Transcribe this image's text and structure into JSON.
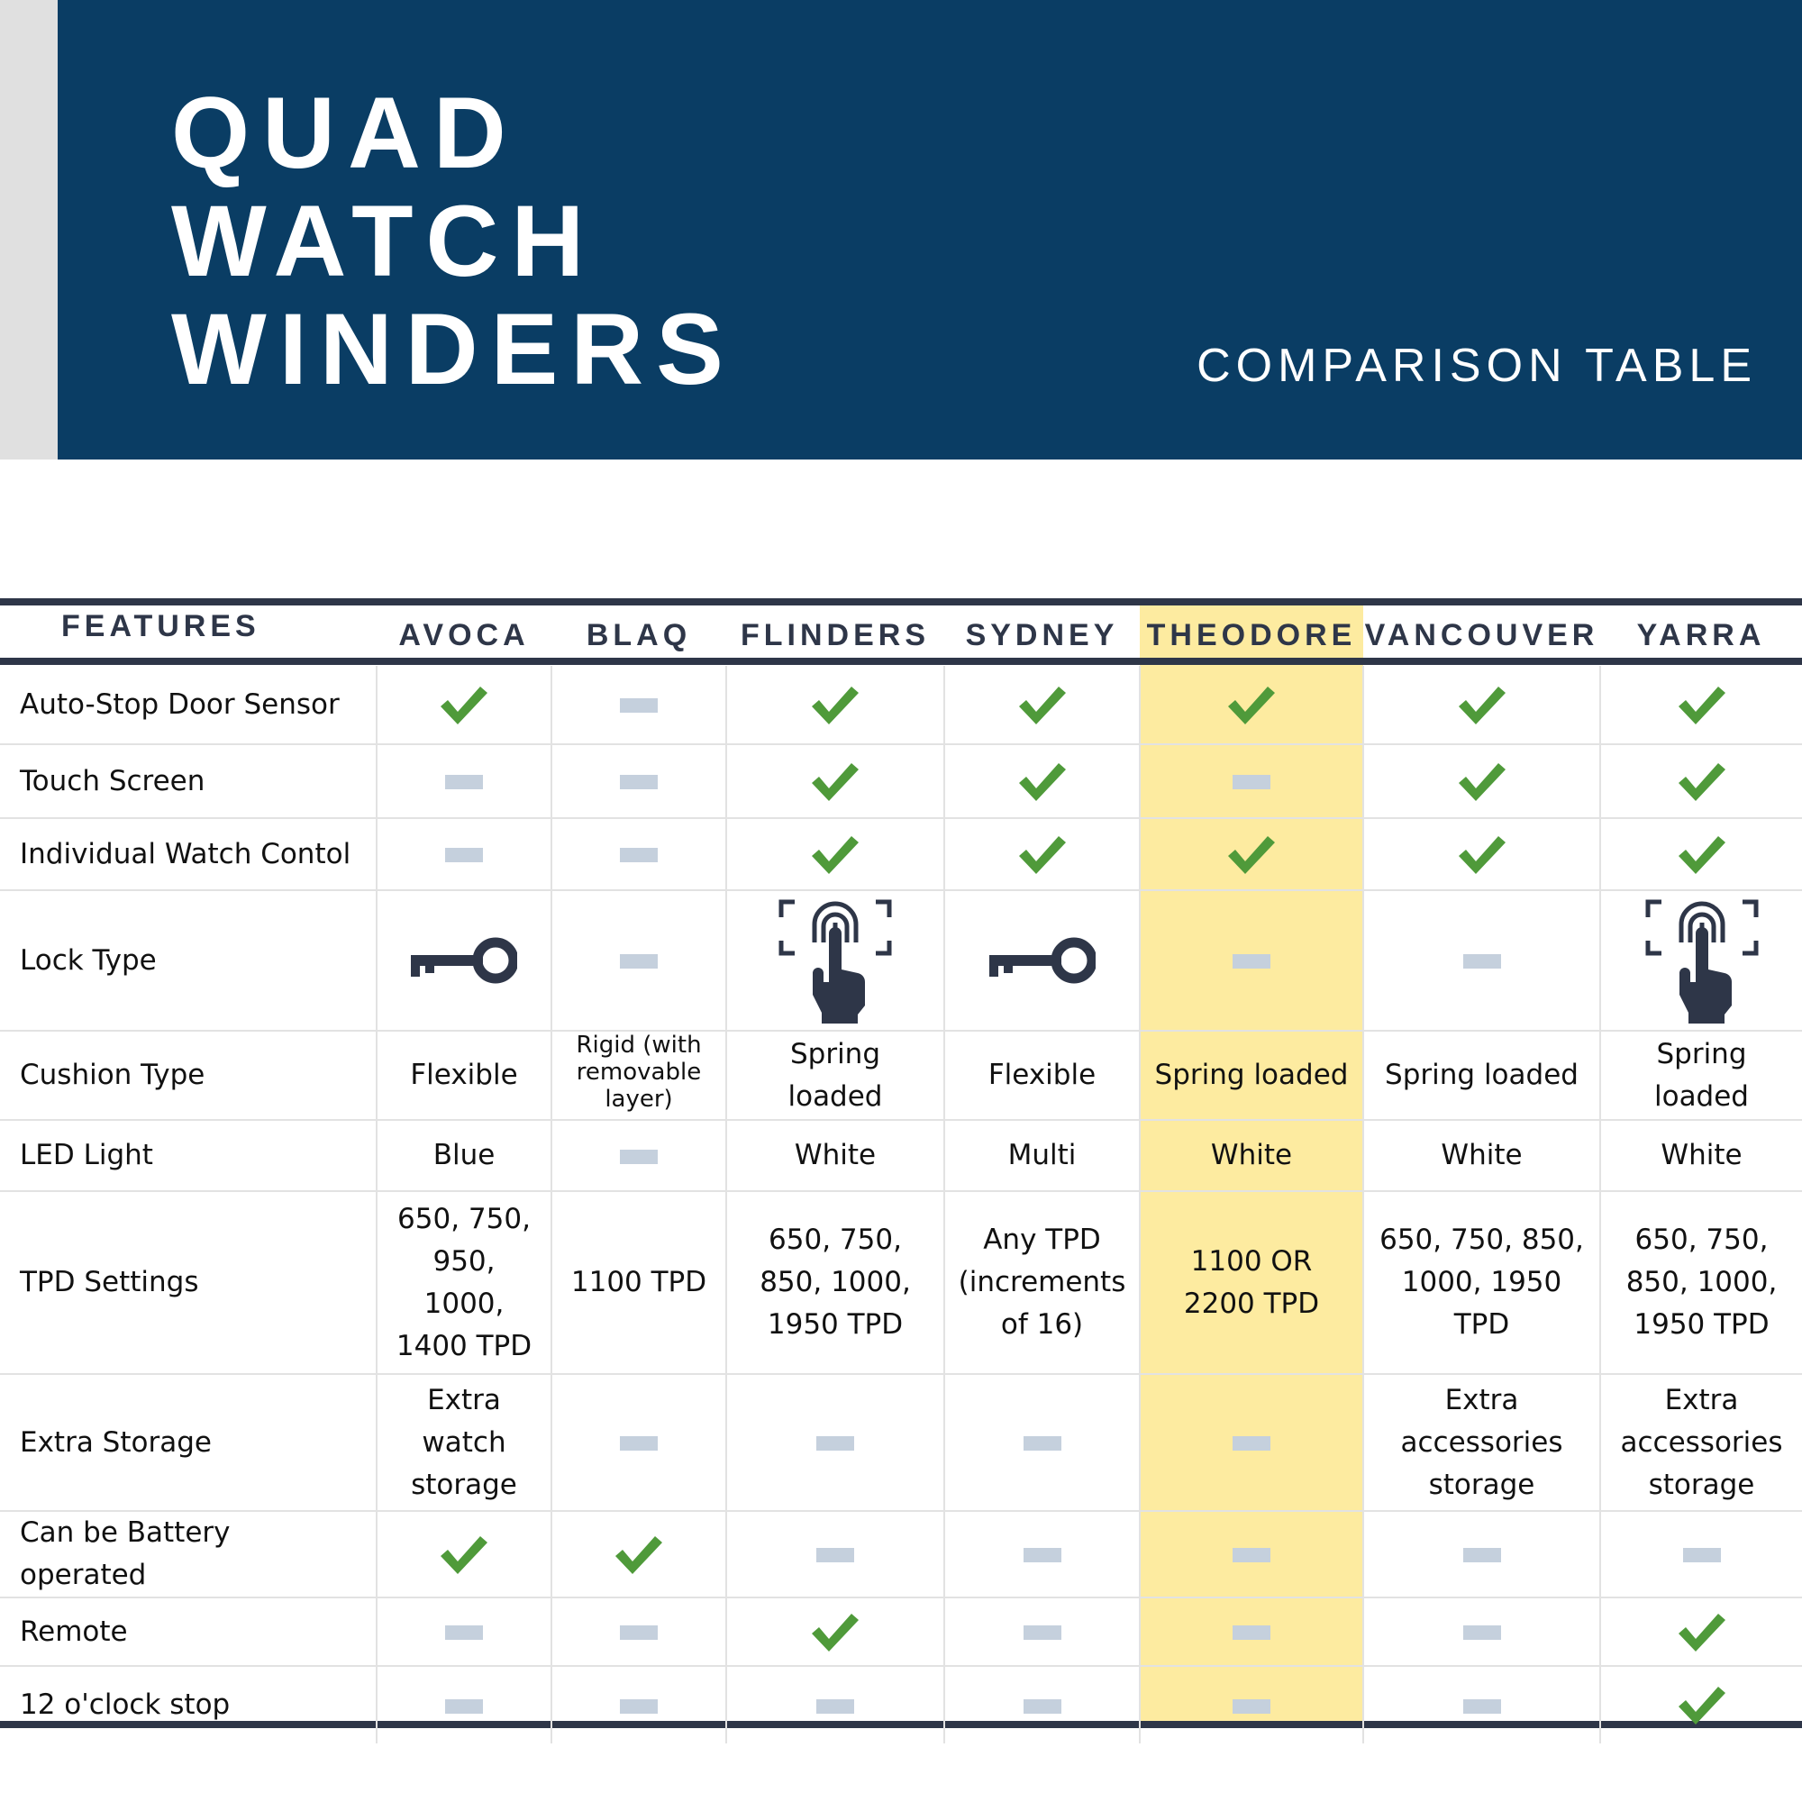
{
  "header": {
    "title_lines": [
      "QUAD",
      "WATCH",
      "WINDERS"
    ],
    "subtitle": "COMPARISON TABLE",
    "background_color": "#0a3d64"
  },
  "table": {
    "features_label": "FEATURES",
    "highlight_column": "THEODORE",
    "highlight_color": "#fdeba0",
    "check_color": "#4f9a3a",
    "dash_color": "#c5d0dd",
    "columns": [
      "AVOCA",
      "BLAQ",
      "FLINDERS",
      "SYDNEY",
      "THEODORE",
      "VANCOUVER",
      "YARRA"
    ],
    "rows": [
      {
        "feature": "Auto-Stop Door Sensor",
        "values": [
          "check-icon",
          "dash-icon",
          "check-icon",
          "check-icon",
          "check-icon",
          "check-icon",
          "check-icon"
        ]
      },
      {
        "feature": "Touch Screen",
        "values": [
          "dash-icon",
          "dash-icon",
          "check-icon",
          "check-icon",
          "dash-icon",
          "check-icon",
          "check-icon"
        ]
      },
      {
        "feature": "Individual Watch Contol",
        "values": [
          "dash-icon",
          "dash-icon",
          "check-icon",
          "check-icon",
          "check-icon",
          "check-icon",
          "check-icon"
        ]
      },
      {
        "feature": "Lock Type",
        "values": [
          "key-icon",
          "dash-icon",
          "fingerprint-touch-icon",
          "key-icon",
          "dash-icon",
          "dash-icon",
          "fingerprint-touch-icon"
        ]
      },
      {
        "feature": "Cushion Type",
        "values": [
          "Flexible",
          "Rigid (with removable layer)",
          "Spring loaded",
          "Flexible",
          "Spring loaded",
          "Spring loaded",
          "Spring loaded"
        ]
      },
      {
        "feature": "LED Light",
        "values": [
          "Blue",
          "dash-icon",
          "White",
          "Multi",
          "White",
          "White",
          "White"
        ]
      },
      {
        "feature": "TPD Settings",
        "values": [
          "650, 750, 950, 1000, 1400 TPD",
          "1100 TPD",
          "650, 750, 850, 1000, 1950 TPD",
          "Any TPD (increments of 16)",
          "1100 OR 2200 TPD",
          "650, 750, 850, 1000, 1950 TPD",
          "650, 750, 850, 1000, 1950 TPD"
        ]
      },
      {
        "feature": "Extra Storage",
        "values": [
          "Extra watch storage",
          "dash-icon",
          "dash-icon",
          "dash-icon",
          "dash-icon",
          "Extra accessories storage",
          "Extra accessories storage"
        ]
      },
      {
        "feature": "Can be Battery operated",
        "values": [
          "check-icon",
          "check-icon",
          "dash-icon",
          "dash-icon",
          "dash-icon",
          "dash-icon",
          "dash-icon"
        ]
      },
      {
        "feature": "Remote",
        "values": [
          "dash-icon",
          "dash-icon",
          "check-icon",
          "dash-icon",
          "dash-icon",
          "dash-icon",
          "check-icon"
        ]
      },
      {
        "feature": "12 o'clock stop",
        "values": [
          "dash-icon",
          "dash-icon",
          "dash-icon",
          "dash-icon",
          "dash-icon",
          "dash-icon",
          "check-icon"
        ]
      }
    ]
  }
}
